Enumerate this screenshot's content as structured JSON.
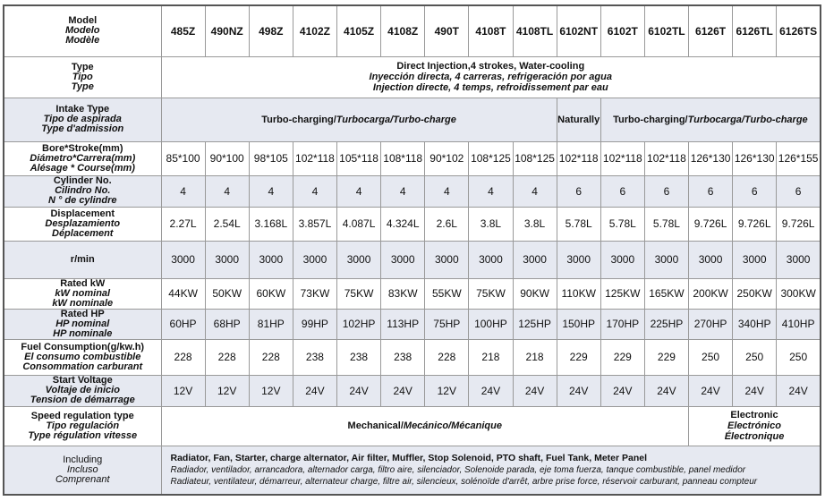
{
  "models": [
    "485Z",
    "490NZ",
    "498Z",
    "4102Z",
    "4105Z",
    "4108Z",
    "490T",
    "4108T",
    "4108TL",
    "6102NT",
    "6102T",
    "6102TL",
    "6126T",
    "6126TL",
    "6126TS"
  ],
  "labels": {
    "model": [
      "Model",
      "Modelo",
      "Modèle"
    ],
    "type": [
      "Type",
      "Tipo",
      "Type"
    ],
    "intake": [
      "Intake Type",
      "Tipo de aspirada",
      "Type d'admission"
    ],
    "bore": [
      "Bore*Stroke(mm)",
      "Diámetro*Carrera(mm)",
      "Alésage * Course(mm)"
    ],
    "cylinder": [
      "Cylinder No.",
      "Cilindro No.",
      "N ° de cylindre"
    ],
    "displacement": [
      "Displacement",
      "Desplazamiento",
      "Déplacement"
    ],
    "rpm": [
      "r/min"
    ],
    "kw": [
      "Rated kW",
      "kW nominal",
      "kW nominale"
    ],
    "hp": [
      "Rated HP",
      "HP nominal",
      "HP nominale"
    ],
    "fuel": [
      "Fuel Consumption(g/kw.h)",
      "El consumo combustible",
      "Consommation carburant"
    ],
    "voltage": [
      "Start Voltage",
      "Voltaje de inicio",
      "Tension de démarrage"
    ],
    "speed": [
      "Speed regulation type",
      "Tipo regulación",
      "Type régulation vitesse"
    ],
    "including": [
      "Including",
      "Incluso",
      "Comprenant"
    ]
  },
  "type_value": [
    "Direct Injection,4 strokes, Water-cooling",
    "Inyección directa, 4 carreras, refrigeración por agua",
    "Injection directe, 4 temps, refroidissement par eau"
  ],
  "intake_values": {
    "turbo": [
      "Turbo-charging/",
      "Turbocarga/Turbo-charge"
    ],
    "naturally": "Naturally"
  },
  "rows": {
    "bore": [
      "85*100",
      "90*100",
      "98*105",
      "102*118",
      "105*118",
      "108*118",
      "90*102",
      "108*125",
      "108*125",
      "102*118",
      "102*118",
      "102*118",
      "126*130",
      "126*130",
      "126*155"
    ],
    "cylinder": [
      "4",
      "4",
      "4",
      "4",
      "4",
      "4",
      "4",
      "4",
      "4",
      "6",
      "6",
      "6",
      "6",
      "6",
      "6"
    ],
    "displacement": [
      "2.27L",
      "2.54L",
      "3.168L",
      "3.857L",
      "4.087L",
      "4.324L",
      "2.6L",
      "3.8L",
      "3.8L",
      "5.78L",
      "5.78L",
      "5.78L",
      "9.726L",
      "9.726L",
      "9.726L"
    ],
    "rpm": [
      "3000",
      "3000",
      "3000",
      "3000",
      "3000",
      "3000",
      "3000",
      "3000",
      "3000",
      "3000",
      "3000",
      "3000",
      "3000",
      "3000",
      "3000"
    ],
    "kw": [
      "44KW",
      "50KW",
      "60KW",
      "73KW",
      "75KW",
      "83KW",
      "55KW",
      "75KW",
      "90KW",
      "110KW",
      "125KW",
      "165KW",
      "200KW",
      "250KW",
      "300KW"
    ],
    "hp": [
      "60HP",
      "68HP",
      "81HP",
      "99HP",
      "102HP",
      "113HP",
      "75HP",
      "100HP",
      "125HP",
      "150HP",
      "170HP",
      "225HP",
      "270HP",
      "340HP",
      "410HP"
    ],
    "fuel": [
      "228",
      "228",
      "228",
      "238",
      "238",
      "238",
      "228",
      "218",
      "218",
      "229",
      "229",
      "229",
      "250",
      "250",
      "250"
    ],
    "voltage": [
      "12V",
      "12V",
      "12V",
      "24V",
      "24V",
      "24V",
      "12V",
      "24V",
      "24V",
      "24V",
      "24V",
      "24V",
      "24V",
      "24V",
      "24V"
    ]
  },
  "speed_values": {
    "mechanical": [
      "Mechanical/",
      "Mecánico/Mécanique"
    ],
    "electronic": [
      "Electronic",
      "Electrónico",
      "Électronique"
    ]
  },
  "including_value": [
    "Radiator, Fan, Starter, charge alternator, Air filter, Muffler, Stop Solenoid, PTO shaft, Fuel Tank, Meter Panel",
    "Radiador, ventilador, arrancadora, alternador carga, filtro aire, silenciador, Solenoide parada, eje toma fuerza, tanque combustible, panel medidor",
    "Radiateur, ventilateur, démarreur, alternateur charge, filtre air, silencieux, solénoïde d'arrêt, arbre prise force, réservoir carburant, panneau compteur"
  ],
  "colors": {
    "shade": "#e6e9f1",
    "border": "#999999"
  }
}
